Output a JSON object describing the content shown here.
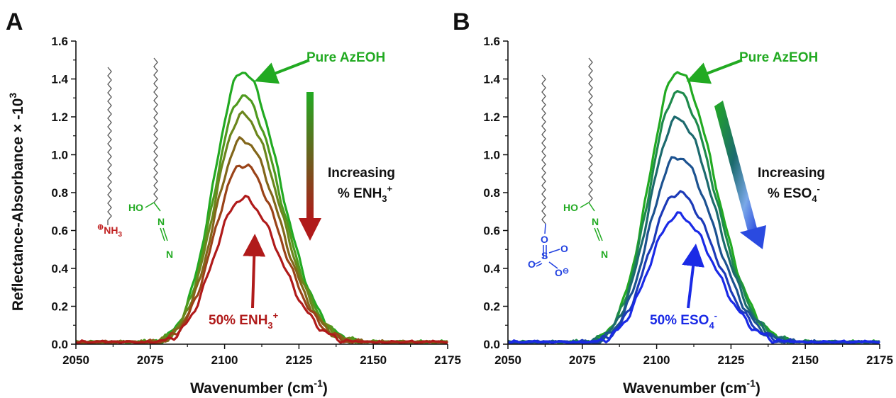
{
  "figure": {
    "panels": [
      "A",
      "B"
    ],
    "ylabel": "Reflectance-Absorbance × -10",
    "ylabel_sup": "3",
    "xlabel": "Wavenumber (cm",
    "xlabel_sup": "-1",
    "xlabel_end": ")"
  },
  "colors": {
    "axis": "#111111",
    "pure_green": "#22aa22",
    "enh3_red": "#b01a1a",
    "eso4_blue": "#1a2ae6",
    "chem_green": "#22aa22",
    "chem_red": "#c02020",
    "chem_blue": "#2040e0",
    "chain_gray": "#555555"
  },
  "chart_data": [
    {
      "type": "line",
      "panel": "A",
      "xlim": [
        2050,
        2175
      ],
      "ylim": [
        0,
        1.6
      ],
      "xticks": [
        2050,
        2075,
        2100,
        2125,
        2150,
        2175
      ],
      "yticks": [
        0.0,
        0.2,
        0.4,
        0.6,
        0.8,
        1.0,
        1.2,
        1.4,
        1.6
      ],
      "xtick_labels": [
        "2050",
        "2075",
        "2100",
        "2125",
        "2150",
        "2175"
      ],
      "ytick_labels": [
        "0.0",
        "0.2",
        "0.4",
        "0.6",
        "0.8",
        "1.0",
        "1.2",
        "1.4",
        "1.6"
      ],
      "peak_center": 2106,
      "series": [
        {
          "peak": 1.44,
          "color": "#22aa22"
        },
        {
          "peak": 1.31,
          "color": "#4f9a1e"
        },
        {
          "peak": 1.21,
          "color": "#6b861c"
        },
        {
          "peak": 1.08,
          "color": "#82661a"
        },
        {
          "peak": 0.95,
          "color": "#9a4318"
        },
        {
          "peak": 0.77,
          "color": "#b01a1a"
        }
      ],
      "annotations": {
        "top": "Pure AzEOH",
        "trend_line1": "Increasing",
        "trend_line2": "% ENH",
        "trend_sub": "3",
        "trend_sup": "+",
        "bottom": "50% ENH",
        "bottom_sub": "3",
        "bottom_sup": "+"
      },
      "molecules": {
        "head1": "NH",
        "head1_sub": "3",
        "head1_charge": "⊕",
        "ho": "HO",
        "n": "N"
      }
    },
    {
      "type": "line",
      "panel": "B",
      "xlim": [
        2050,
        2175
      ],
      "ylim": [
        0,
        1.6
      ],
      "xticks": [
        2050,
        2075,
        2100,
        2125,
        2150,
        2175
      ],
      "yticks": [
        0.0,
        0.2,
        0.4,
        0.6,
        0.8,
        1.0,
        1.2,
        1.4,
        1.6
      ],
      "xtick_labels": [
        "2050",
        "2075",
        "2100",
        "2125",
        "2150",
        "2175"
      ],
      "ytick_labels": [
        "0.0",
        "0.2",
        "0.4",
        "0.6",
        "0.8",
        "1.0",
        "1.2",
        "1.4",
        "1.6"
      ],
      "peak_center": 2107,
      "series": [
        {
          "peak": 1.44,
          "color": "#22aa22"
        },
        {
          "peak": 1.33,
          "color": "#1e8a4c"
        },
        {
          "peak": 1.19,
          "color": "#1c6a6e"
        },
        {
          "peak": 0.99,
          "color": "#1c5290"
        },
        {
          "peak": 0.8,
          "color": "#1c3ab8"
        },
        {
          "peak": 0.68,
          "color": "#1a2ae6"
        }
      ],
      "annotations": {
        "top": "Pure AzEOH",
        "trend_line1": "Increasing",
        "trend_line2": "% ESO",
        "trend_sub": "4",
        "trend_sup": "-",
        "bottom": "50% ESO",
        "bottom_sub": "4",
        "bottom_sup": "-"
      },
      "molecules": {
        "o": "O",
        "s": "S",
        "o_minus": "⊖",
        "ho": "HO",
        "n": "N"
      }
    }
  ]
}
